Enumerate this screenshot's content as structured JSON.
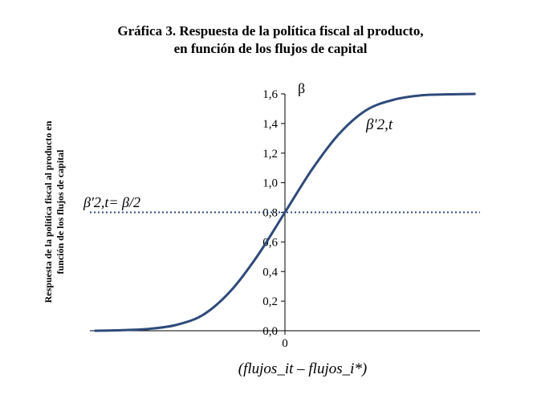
{
  "chart_data": {
    "type": "line",
    "title": "Gráfica 3. Respuesta de la política fiscal al producto, en función de los flujos de capital",
    "title_lines": [
      "Gráfica 3. Respuesta de la política fiscal al producto,",
      "en función de los flujos de capital"
    ],
    "ylabel": "Respuesta de la política fiscal al producto en función de los flujos de capital",
    "ylabel_lines": [
      "Respuesta de la política fiscal al producto en",
      "función de los flujos de capital"
    ],
    "xlabel": "(flujos_it – flujos_i*)",
    "ylim": [
      0,
      1.6
    ],
    "xlim": [
      -3.6,
      3.6
    ],
    "y_ticks": [
      "0,0",
      "0,2",
      "0,4",
      "0,6",
      "0,8",
      "1,0",
      "1,2",
      "1,4",
      "1,6"
    ],
    "y_tick_values": [
      0,
      0.2,
      0.4,
      0.6,
      0.8,
      1.0,
      1.2,
      1.4,
      1.6
    ],
    "x_ticks": [
      "0"
    ],
    "x_tick_values": [
      0
    ],
    "grid": false,
    "series": [
      {
        "name": "β′2,t",
        "color": "#2e4a7a",
        "x": [
          -3.5,
          -3.0,
          -2.5,
          -2.0,
          -1.5,
          -1.0,
          -0.5,
          0,
          0.5,
          1.0,
          1.5,
          2.0,
          2.5,
          3.0,
          3.5
        ],
        "y": [
          0.0,
          0.004,
          0.013,
          0.04,
          0.11,
          0.27,
          0.51,
          0.8,
          1.09,
          1.33,
          1.49,
          1.56,
          1.59,
          1.597,
          1.6
        ]
      }
    ],
    "reference_line": {
      "y": 0.8,
      "style": "dotted",
      "color": "#2e4a7a",
      "label": "β′2,t = β/2"
    },
    "annotations": {
      "y_axis_symbol": "β",
      "curve_label": "β′2,t",
      "ref_label": "β′2,t= β/2"
    }
  }
}
